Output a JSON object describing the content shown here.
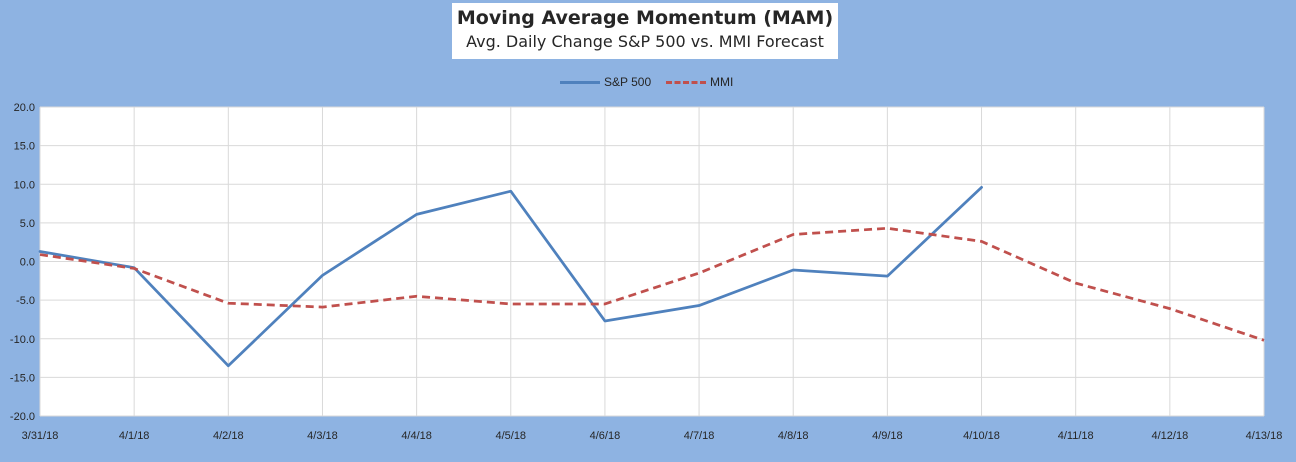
{
  "chart_data": {
    "type": "line",
    "title": "Moving Average Momentum (MAM)",
    "subtitle": "Avg. Daily Change S&P 500 vs. MMI Forecast",
    "categories": [
      "3/31/18",
      "4/1/18",
      "4/2/18",
      "4/3/18",
      "4/4/18",
      "4/5/18",
      "4/6/18",
      "4/7/18",
      "4/8/18",
      "4/9/18",
      "4/10/18",
      "4/11/18",
      "4/12/18",
      "4/13/18"
    ],
    "y_tick_labels": [
      "20.0",
      "15.0",
      "10.0",
      "5.0",
      "0.0",
      "-5.0",
      "-10.0",
      "-15.0",
      "-20.0"
    ],
    "ylim": [
      -20,
      20
    ],
    "grid": true,
    "legend_position": "top",
    "series": [
      {
        "name": "S&P 500",
        "color": "#4f81bd",
        "style": "solid",
        "values": [
          1.3,
          -0.8,
          -13.5,
          -1.8,
          6.1,
          9.1,
          -7.7,
          -5.7,
          -1.1,
          -1.9,
          9.6,
          null,
          null,
          null
        ]
      },
      {
        "name": "MMI",
        "color": "#c0504d",
        "style": "dashed",
        "values": [
          0.9,
          -0.9,
          -5.4,
          -5.9,
          -4.5,
          -5.5,
          -5.5,
          -1.5,
          3.5,
          4.3,
          2.6,
          -2.8,
          -6.1,
          -10.2
        ]
      }
    ]
  }
}
